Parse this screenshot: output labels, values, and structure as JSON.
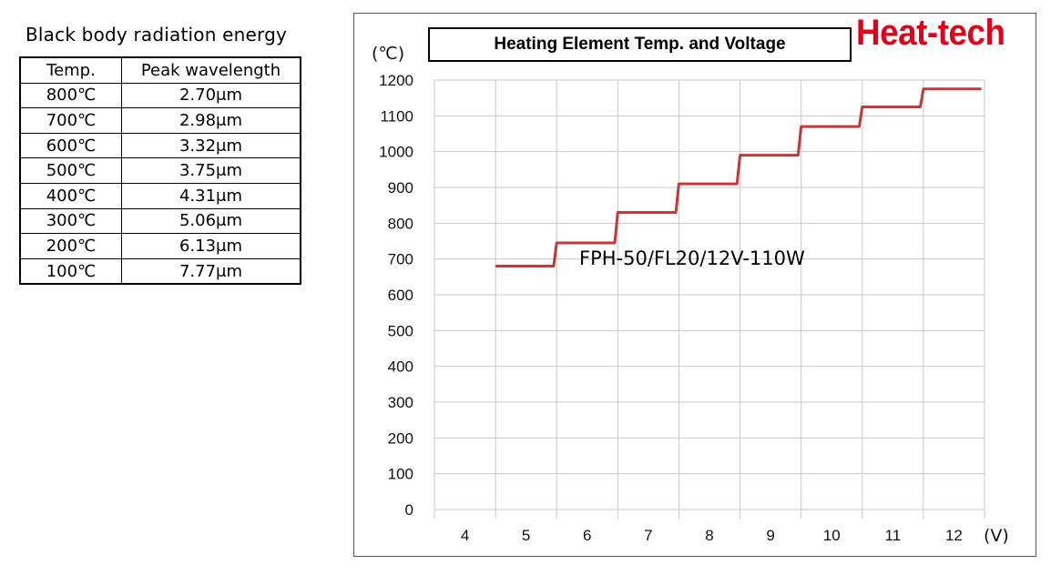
{
  "table": {
    "title": "Black body radiation energy",
    "headers": [
      "Temp.",
      "Peak wavelength"
    ],
    "rows": [
      [
        "800℃",
        "2.70μm"
      ],
      [
        "700℃",
        "2.98μm"
      ],
      [
        "600℃",
        "3.32μm"
      ],
      [
        "500℃",
        "3.75μm"
      ],
      [
        "400℃",
        "4.31μm"
      ],
      [
        "300℃",
        "5.06μm"
      ],
      [
        "200℃",
        "6.13μm"
      ],
      [
        "100℃",
        "7.77μm"
      ]
    ]
  },
  "brand": "Heat-tech",
  "chart_data": {
    "type": "line",
    "title": "Heating Element Temp. and Voltage",
    "ylabel": "(℃)",
    "xlabel": "(V)",
    "annotation": "FPH-50/FL20/12V-110W",
    "x_ticks": [
      "4",
      "5",
      "6",
      "7",
      "8",
      "9",
      "10",
      "11",
      "12"
    ],
    "y_ticks": [
      "0",
      "100",
      "200",
      "300",
      "400",
      "500",
      "600",
      "700",
      "800",
      "900",
      "1000",
      "1100",
      "1200"
    ],
    "xlim": [
      3.5,
      12.5
    ],
    "ylim": [
      0,
      1200
    ],
    "grid": true,
    "series": [
      {
        "color": "#c0393b",
        "x": [
          4.5,
          5.45,
          5.5,
          6.45,
          6.5,
          7.45,
          7.5,
          8.45,
          8.5,
          9.45,
          9.5,
          10.45,
          10.5,
          11.45,
          11.5,
          12.45
        ],
        "y": [
          680,
          680,
          745,
          745,
          830,
          830,
          910,
          910,
          990,
          990,
          1070,
          1070,
          1125,
          1125,
          1175,
          1175
        ]
      }
    ]
  }
}
